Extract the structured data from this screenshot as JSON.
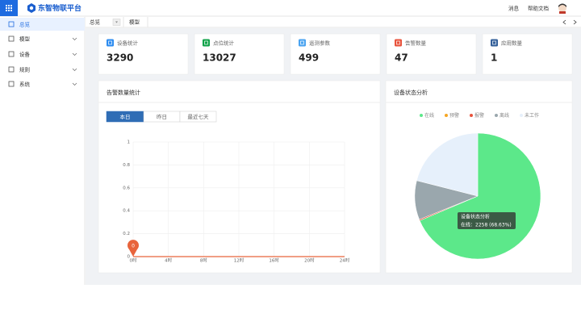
{
  "header": {
    "logo": "东智物联平台",
    "links": [
      "消息",
      "帮助文档"
    ]
  },
  "sidebar": [
    "总览",
    "模型",
    "设备",
    "规则",
    "系统"
  ],
  "tabs": [
    "总览",
    "模型"
  ],
  "stats": [
    {
      "label": "设备统计",
      "value": 3290,
      "color": "#2d8cf0"
    },
    {
      "label": "点位统计",
      "value": 13027,
      "color": "#12a34a"
    },
    {
      "label": "遥测参数",
      "value": 499,
      "color": "#4aa3f0"
    },
    {
      "label": "告警数量",
      "value": 47,
      "color": "#e8533c"
    },
    {
      "label": "应用数量",
      "value": 1,
      "color": "#34609a"
    }
  ],
  "chart_data": [
    {
      "type": "line",
      "title": "告警数量统计",
      "buttons": [
        "本日",
        "昨日",
        "最近七天"
      ],
      "x": [
        0,
        4,
        8,
        12,
        16,
        20,
        24
      ],
      "values": [
        0,
        0,
        0,
        0,
        0,
        0,
        0
      ],
      "color": "#e8643c",
      "xlim": [
        0,
        24
      ],
      "xticks": [
        {
          "value": 0,
          "label": "0时"
        },
        {
          "value": 4,
          "label": "4时"
        },
        {
          "value": 8,
          "label": "8时"
        },
        {
          "value": 12,
          "label": "12时"
        },
        {
          "value": 16,
          "label": "16时"
        },
        {
          "value": 20,
          "label": "20时"
        },
        {
          "value": 24,
          "label": "24时"
        }
      ],
      "ylim": [
        0,
        1
      ],
      "yticks": [
        0,
        0.2,
        0.4,
        0.6,
        0.8,
        1
      ],
      "grid": true
    },
    {
      "type": "pie",
      "title": "设备状态分析",
      "categories": [
        "在线",
        "预警",
        "报警",
        "离线",
        "未工作"
      ],
      "values": [
        2258,
        0,
        10,
        330,
        692
      ],
      "colors": [
        "#5ce88a",
        "#f5a623",
        "#e8533c",
        "#9aa7ad",
        "#e6f0fb"
      ],
      "tooltip": {
        "title": "设备状态分析",
        "text": "在线：2258 (68.63%)"
      }
    }
  ]
}
